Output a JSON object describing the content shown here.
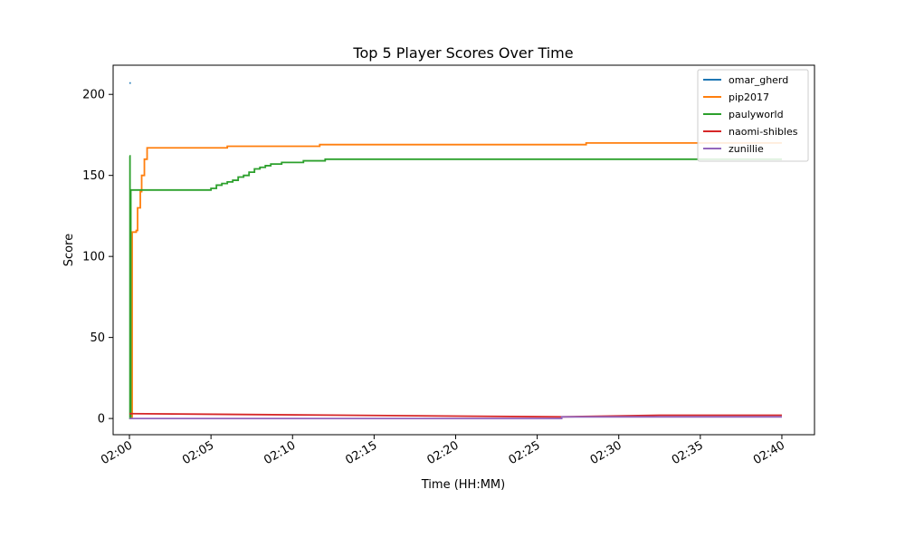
{
  "chart_data": {
    "type": "line",
    "title": "Top 5 Player Scores Over Time",
    "xlabel": "Time (HH:MM)",
    "ylabel": "Score",
    "x_unit": "time (HH:MM)",
    "xlim": [
      "01:59:00",
      "02:42:00"
    ],
    "ylim": [
      -10,
      218
    ],
    "x_ticks": [
      "02:00",
      "02:05",
      "02:10",
      "02:15",
      "02:20",
      "02:25",
      "02:30",
      "02:35",
      "02:40"
    ],
    "y_ticks": [
      0,
      50,
      100,
      150,
      200
    ],
    "legend_position": "top-right",
    "grid": false,
    "series": [
      {
        "name": "omar_gherd",
        "color": "#1f77b4",
        "step": true,
        "points": [
          [
            "02:00:00",
            207
          ],
          [
            "02:00:05",
            207
          ]
        ]
      },
      {
        "name": "pip2017",
        "color": "#ff7f0e",
        "step": true,
        "points": [
          [
            "02:00:00",
            0
          ],
          [
            "02:00:10",
            115
          ],
          [
            "02:00:25",
            116
          ],
          [
            "02:00:30",
            130
          ],
          [
            "02:00:40",
            140
          ],
          [
            "02:00:45",
            150
          ],
          [
            "02:00:55",
            160
          ],
          [
            "02:01:05",
            167
          ],
          [
            "02:06:00",
            168
          ],
          [
            "02:11:40",
            169
          ],
          [
            "02:28:00",
            170
          ],
          [
            "02:40:00",
            170
          ]
        ]
      },
      {
        "name": "paulyworld",
        "color": "#2ca02c",
        "step": true,
        "points": [
          [
            "02:00:00",
            162
          ],
          [
            "02:00:02",
            0
          ],
          [
            "02:00:05",
            141
          ],
          [
            "02:05:00",
            142
          ],
          [
            "02:05:20",
            144
          ],
          [
            "02:05:40",
            145
          ],
          [
            "02:06:00",
            146
          ],
          [
            "02:06:20",
            147
          ],
          [
            "02:06:40",
            149
          ],
          [
            "02:07:00",
            150
          ],
          [
            "02:07:20",
            152
          ],
          [
            "02:07:40",
            154
          ],
          [
            "02:08:00",
            155
          ],
          [
            "02:08:20",
            156
          ],
          [
            "02:08:40",
            157
          ],
          [
            "02:09:20",
            158
          ],
          [
            "02:10:40",
            159
          ],
          [
            "02:12:00",
            160
          ],
          [
            "02:40:00",
            160
          ]
        ]
      },
      {
        "name": "naomi-shibles",
        "color": "#d62728",
        "step": false,
        "points": [
          [
            "02:00:00",
            3
          ],
          [
            "02:26:30",
            1
          ],
          [
            "02:32:30",
            2
          ],
          [
            "02:40:00",
            2
          ]
        ]
      },
      {
        "name": "zunillie",
        "color": "#9467bd",
        "step": true,
        "points": [
          [
            "02:00:00",
            0
          ],
          [
            "02:26:30",
            1
          ],
          [
            "02:40:00",
            1
          ]
        ]
      }
    ]
  }
}
